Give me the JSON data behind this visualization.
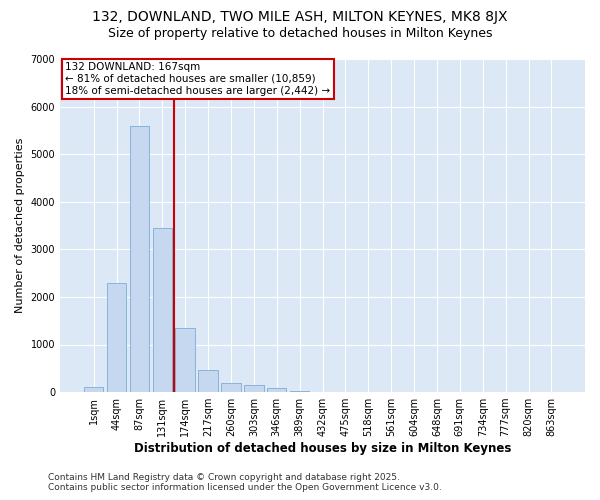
{
  "title_line1": "132, DOWNLAND, TWO MILE ASH, MILTON KEYNES, MK8 8JX",
  "title_line2": "Size of property relative to detached houses in Milton Keynes",
  "xlabel": "Distribution of detached houses by size in Milton Keynes",
  "ylabel": "Number of detached properties",
  "categories": [
    "1sqm",
    "44sqm",
    "87sqm",
    "131sqm",
    "174sqm",
    "217sqm",
    "260sqm",
    "303sqm",
    "346sqm",
    "389sqm",
    "432sqm",
    "475sqm",
    "518sqm",
    "561sqm",
    "604sqm",
    "648sqm",
    "691sqm",
    "734sqm",
    "777sqm",
    "820sqm",
    "863sqm"
  ],
  "values": [
    100,
    2300,
    5600,
    3450,
    1350,
    470,
    190,
    150,
    80,
    30,
    0,
    0,
    0,
    0,
    0,
    0,
    0,
    0,
    0,
    0,
    0
  ],
  "bar_color": "#c5d8f0",
  "bar_edge_color": "#7aadd4",
  "vline_color": "#cc0000",
  "vline_x_index": 3.5,
  "annotation_text": "132 DOWNLAND: 167sqm\n← 81% of detached houses are smaller (10,859)\n18% of semi-detached houses are larger (2,442) →",
  "annotation_box_color": "#cc0000",
  "ylim": [
    0,
    7000
  ],
  "yticks": [
    0,
    1000,
    2000,
    3000,
    4000,
    5000,
    6000,
    7000
  ],
  "background_color": "#dce8f5",
  "grid_color": "#ffffff",
  "footer_line1": "Contains HM Land Registry data © Crown copyright and database right 2025.",
  "footer_line2": "Contains public sector information licensed under the Open Government Licence v3.0.",
  "title_fontsize": 10,
  "subtitle_fontsize": 9,
  "tick_fontsize": 7,
  "ylabel_fontsize": 8,
  "xlabel_fontsize": 8.5,
  "annotation_fontsize": 7.5,
  "footer_fontsize": 6.5
}
